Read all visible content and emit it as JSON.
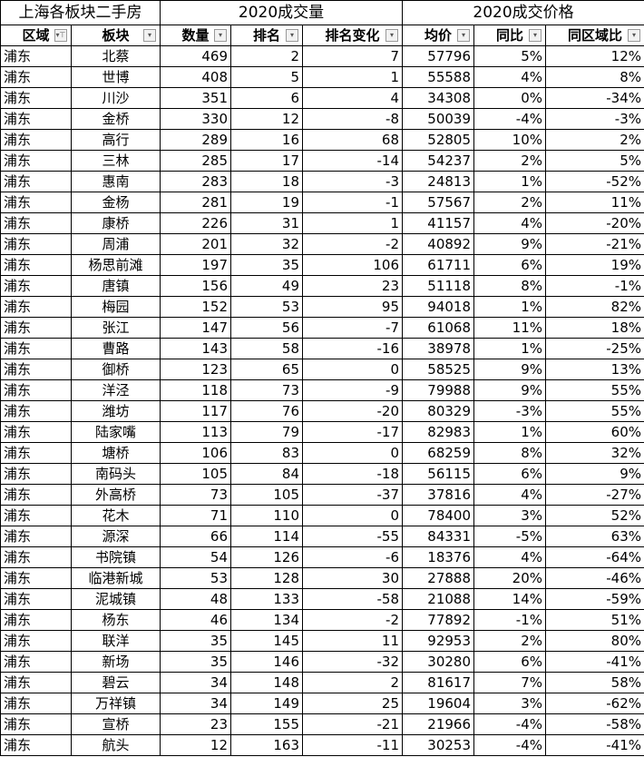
{
  "title": "上海各板块二手房",
  "group_volume": "2020成交量",
  "group_price": "2020成交价格",
  "columns": [
    {
      "label": "区域",
      "filter_icon": "filter-active-icon"
    },
    {
      "label": "板块",
      "filter_icon": "dropdown-icon"
    },
    {
      "label": "数量",
      "filter_icon": "dropdown-icon"
    },
    {
      "label": "排名",
      "filter_icon": "dropdown-icon"
    },
    {
      "label": "排名变化",
      "filter_icon": "dropdown-icon"
    },
    {
      "label": "均价",
      "filter_icon": "dropdown-icon"
    },
    {
      "label": "同比",
      "filter_icon": "dropdown-icon"
    },
    {
      "label": "同区域比",
      "filter_icon": "dropdown-icon"
    }
  ],
  "rows": [
    [
      "浦东",
      "北蔡",
      "469",
      "2",
      "7",
      "57796",
      "5%",
      "12%"
    ],
    [
      "浦东",
      "世博",
      "408",
      "5",
      "1",
      "55588",
      "4%",
      "8%"
    ],
    [
      "浦东",
      "川沙",
      "351",
      "6",
      "4",
      "34308",
      "0%",
      "-34%"
    ],
    [
      "浦东",
      "金桥",
      "330",
      "12",
      "-8",
      "50039",
      "-4%",
      "-3%"
    ],
    [
      "浦东",
      "高行",
      "289",
      "16",
      "68",
      "52805",
      "10%",
      "2%"
    ],
    [
      "浦东",
      "三林",
      "285",
      "17",
      "-14",
      "54237",
      "2%",
      "5%"
    ],
    [
      "浦东",
      "惠南",
      "283",
      "18",
      "-3",
      "24813",
      "1%",
      "-52%"
    ],
    [
      "浦东",
      "金杨",
      "281",
      "19",
      "-1",
      "57567",
      "2%",
      "11%"
    ],
    [
      "浦东",
      "康桥",
      "226",
      "31",
      "1",
      "41157",
      "4%",
      "-20%"
    ],
    [
      "浦东",
      "周浦",
      "201",
      "32",
      "-2",
      "40892",
      "9%",
      "-21%"
    ],
    [
      "浦东",
      "杨思前滩",
      "197",
      "35",
      "106",
      "61711",
      "6%",
      "19%"
    ],
    [
      "浦东",
      "唐镇",
      "156",
      "49",
      "23",
      "51118",
      "8%",
      "-1%"
    ],
    [
      "浦东",
      "梅园",
      "152",
      "53",
      "95",
      "94018",
      "1%",
      "82%"
    ],
    [
      "浦东",
      "张江",
      "147",
      "56",
      "-7",
      "61068",
      "11%",
      "18%"
    ],
    [
      "浦东",
      "曹路",
      "143",
      "58",
      "-16",
      "38978",
      "1%",
      "-25%"
    ],
    [
      "浦东",
      "御桥",
      "123",
      "65",
      "0",
      "58525",
      "9%",
      "13%"
    ],
    [
      "浦东",
      "洋泾",
      "118",
      "73",
      "-9",
      "79988",
      "9%",
      "55%"
    ],
    [
      "浦东",
      "潍坊",
      "117",
      "76",
      "-20",
      "80329",
      "-3%",
      "55%"
    ],
    [
      "浦东",
      "陆家嘴",
      "113",
      "79",
      "-17",
      "82983",
      "1%",
      "60%"
    ],
    [
      "浦东",
      "塘桥",
      "106",
      "83",
      "0",
      "68259",
      "8%",
      "32%"
    ],
    [
      "浦东",
      "南码头",
      "105",
      "84",
      "-18",
      "56115",
      "6%",
      "9%"
    ],
    [
      "浦东",
      "外高桥",
      "73",
      "105",
      "-37",
      "37816",
      "4%",
      "-27%"
    ],
    [
      "浦东",
      "花木",
      "71",
      "110",
      "0",
      "78400",
      "3%",
      "52%"
    ],
    [
      "浦东",
      "源深",
      "66",
      "114",
      "-55",
      "84331",
      "-5%",
      "63%"
    ],
    [
      "浦东",
      "书院镇",
      "54",
      "126",
      "-6",
      "18376",
      "4%",
      "-64%"
    ],
    [
      "浦东",
      "临港新城",
      "53",
      "128",
      "30",
      "27888",
      "20%",
      "-46%"
    ],
    [
      "浦东",
      "泥城镇",
      "48",
      "133",
      "-58",
      "21088",
      "14%",
      "-59%"
    ],
    [
      "浦东",
      "杨东",
      "46",
      "134",
      "-2",
      "77892",
      "-1%",
      "51%"
    ],
    [
      "浦东",
      "联洋",
      "35",
      "145",
      "11",
      "92953",
      "2%",
      "80%"
    ],
    [
      "浦东",
      "新场",
      "35",
      "146",
      "-32",
      "30280",
      "6%",
      "-41%"
    ],
    [
      "浦东",
      "碧云",
      "34",
      "148",
      "2",
      "81617",
      "7%",
      "58%"
    ],
    [
      "浦东",
      "万祥镇",
      "34",
      "149",
      "25",
      "19604",
      "3%",
      "-62%"
    ],
    [
      "浦东",
      "宣桥",
      "23",
      "155",
      "-21",
      "21966",
      "-4%",
      "-58%"
    ],
    [
      "浦东",
      "航头",
      "12",
      "163",
      "-11",
      "30253",
      "-4%",
      "-41%"
    ]
  ]
}
